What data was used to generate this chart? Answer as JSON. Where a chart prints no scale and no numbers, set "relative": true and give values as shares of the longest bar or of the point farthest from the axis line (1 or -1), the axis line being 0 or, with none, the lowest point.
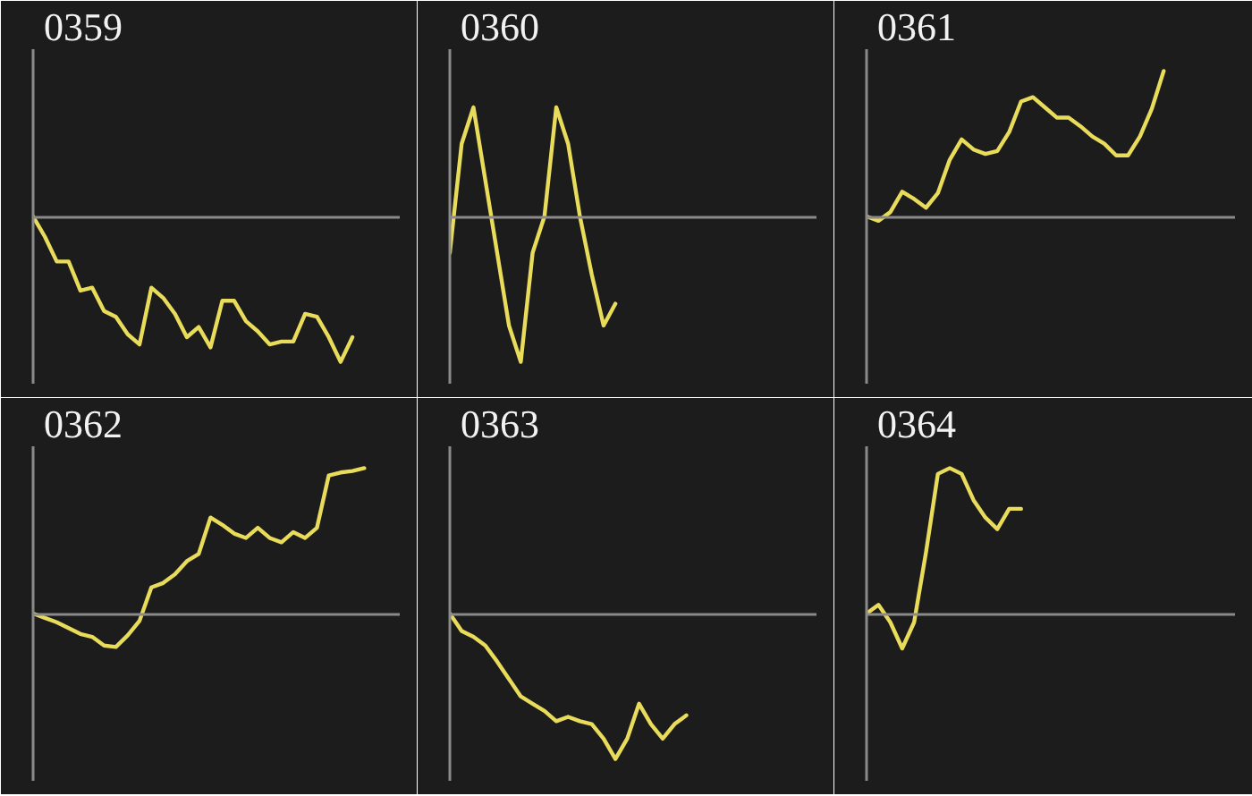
{
  "chart_data": [
    {
      "type": "line",
      "title": "0359",
      "relative": true,
      "categories": [
        null,
        null,
        null,
        null,
        null,
        null,
        null,
        null,
        null,
        null,
        null,
        null,
        null,
        null,
        null,
        null,
        null,
        null,
        null,
        null,
        null,
        null,
        null,
        null,
        null,
        null,
        null,
        null,
        null,
        null,
        null,
        null
      ],
      "series": [
        {
          "color": "#e8dc5a",
          "values": [
            0,
            -0.14,
            -0.31,
            -0.31,
            -0.51,
            -0.49,
            -0.65,
            -0.69,
            -0.81,
            -0.88,
            -0.49,
            -0.56,
            -0.67,
            -0.83,
            -0.76,
            -0.9,
            -0.58,
            -0.58,
            -0.72,
            -0.79,
            -0.88,
            -0.86,
            -0.86,
            -0.67,
            -0.69,
            -0.83,
            -1,
            -0.83,
            null,
            null,
            null,
            null
          ]
        }
      ]
    },
    {
      "type": "line",
      "title": "0360",
      "relative": true,
      "categories": [
        null,
        null,
        null,
        null,
        null,
        null,
        null,
        null,
        null,
        null,
        null,
        null,
        null,
        null,
        null,
        null,
        null,
        null,
        null,
        null,
        null,
        null,
        null,
        null,
        null,
        null,
        null,
        null,
        null,
        null,
        null,
        null
      ],
      "series": [
        {
          "color": "#e8dc5a",
          "values": [
            -0.25,
            0.5,
            0.75,
            0.25,
            -0.25,
            -0.75,
            -1,
            -0.25,
            0,
            0.75,
            0.5,
            0,
            -0.4,
            -0.75,
            -0.6,
            null,
            null,
            null,
            null,
            null,
            null,
            null,
            null,
            null,
            null,
            null,
            null,
            null,
            null,
            null,
            null,
            null
          ]
        }
      ]
    },
    {
      "type": "line",
      "title": "0361",
      "relative": true,
      "categories": [
        null,
        null,
        null,
        null,
        null,
        null,
        null,
        null,
        null,
        null,
        null,
        null,
        null,
        null,
        null,
        null,
        null,
        null,
        null,
        null,
        null,
        null,
        null,
        null,
        null,
        null,
        null,
        null,
        null,
        null,
        null,
        null
      ],
      "series": [
        {
          "color": "#e8dc5a",
          "values": [
            0,
            -0.03,
            0.03,
            0.17,
            0.12,
            0.06,
            0.16,
            0.39,
            0.53,
            0.46,
            0.43,
            0.45,
            0.58,
            0.79,
            0.82,
            0.75,
            0.68,
            0.68,
            0.62,
            0.55,
            0.5,
            0.42,
            0.42,
            0.55,
            0.74,
            1,
            null,
            null,
            null,
            null,
            null,
            null
          ]
        }
      ]
    },
    {
      "type": "line",
      "title": "0362",
      "relative": true,
      "categories": [
        null,
        null,
        null,
        null,
        null,
        null,
        null,
        null,
        null,
        null,
        null,
        null,
        null,
        null,
        null,
        null,
        null,
        null,
        null,
        null,
        null,
        null,
        null,
        null,
        null,
        null,
        null,
        null,
        null,
        null,
        null,
        null
      ],
      "series": [
        {
          "color": "#e8dc5a",
          "values": [
            0,
            -0.03,
            -0.06,
            -0.1,
            -0.14,
            -0.16,
            -0.22,
            -0.23,
            -0.15,
            -0.05,
            0.18,
            0.21,
            0.27,
            0.36,
            0.41,
            0.66,
            0.61,
            0.55,
            0.52,
            0.59,
            0.52,
            0.49,
            0.56,
            0.52,
            0.59,
            0.95,
            0.97,
            0.98,
            1,
            null,
            null,
            null
          ]
        }
      ]
    },
    {
      "type": "line",
      "title": "0363",
      "relative": true,
      "categories": [
        null,
        null,
        null,
        null,
        null,
        null,
        null,
        null,
        null,
        null,
        null,
        null,
        null,
        null,
        null,
        null,
        null,
        null,
        null,
        null,
        null,
        null,
        null,
        null,
        null,
        null,
        null,
        null,
        null,
        null,
        null,
        null
      ],
      "series": [
        {
          "color": "#e8dc5a",
          "values": [
            0,
            -0.12,
            -0.16,
            -0.22,
            -0.33,
            -0.45,
            -0.57,
            -0.62,
            -0.67,
            -0.74,
            -0.71,
            -0.74,
            -0.76,
            -0.86,
            -1,
            -0.86,
            -0.62,
            -0.76,
            -0.86,
            -0.76,
            -0.7,
            null,
            null,
            null,
            null,
            null,
            null,
            null,
            null,
            null,
            null,
            null
          ]
        }
      ]
    },
    {
      "type": "line",
      "title": "0364",
      "relative": true,
      "categories": [
        null,
        null,
        null,
        null,
        null,
        null,
        null,
        null,
        null,
        null,
        null,
        null,
        null,
        null,
        null,
        null,
        null,
        null,
        null,
        null,
        null,
        null,
        null,
        null,
        null,
        null,
        null,
        null,
        null,
        null,
        null,
        null
      ],
      "series": [
        {
          "color": "#e8dc5a",
          "values": [
            0,
            0.06,
            -0.06,
            -0.24,
            -0.06,
            0.42,
            0.96,
            1,
            0.96,
            0.78,
            0.66,
            0.58,
            0.72,
            0.72,
            null,
            null,
            null,
            null,
            null,
            null,
            null,
            null,
            null,
            null,
            null,
            null,
            null,
            null,
            null,
            null,
            null,
            null
          ]
        }
      ]
    }
  ]
}
